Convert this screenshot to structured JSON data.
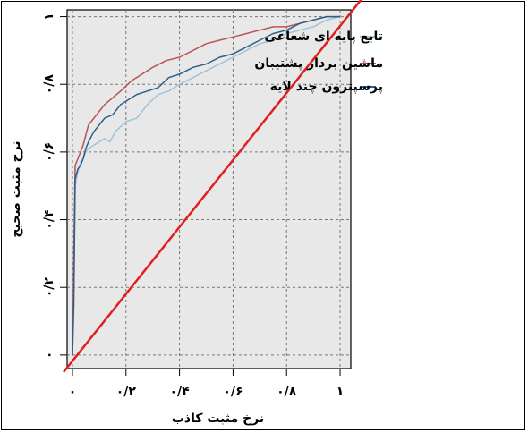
{
  "chart_data": {
    "type": "line",
    "xlabel": "نرخ مثبت کاذب",
    "ylabel": "نرخ مثبت صحیح",
    "xlim": [
      -0.02,
      1.04
    ],
    "ylim": [
      -0.04,
      1.02
    ],
    "x_ticks": [
      0,
      0.2,
      0.4,
      0.6,
      0.8,
      1
    ],
    "x_tick_labels": [
      "۰",
      "۰/۲",
      "۰/۴",
      "۰/۶",
      "۰/۸",
      "۱"
    ],
    "y_ticks": [
      0,
      0.2,
      0.4,
      0.6,
      0.8,
      1
    ],
    "y_tick_labels": [
      "۰",
      "۰/۲",
      "۰/۴",
      "۰/۶",
      "۰/۸",
      "۱"
    ],
    "grid": true,
    "legend_position": "top-right",
    "series": [
      {
        "name": "تابع پایه ای شعاعی",
        "color": "#9dc3de",
        "x": [
          0,
          0.005,
          0.01,
          0.02,
          0.03,
          0.04,
          0.05,
          0.06,
          0.08,
          0.1,
          0.12,
          0.14,
          0.16,
          0.2,
          0.24,
          0.28,
          0.32,
          0.36,
          0.4,
          0.45,
          0.5,
          0.55,
          0.6,
          0.65,
          0.7,
          0.75,
          0.8,
          0.85,
          0.9,
          0.95,
          1
        ],
        "y": [
          0,
          0.22,
          0.5,
          0.54,
          0.57,
          0.58,
          0.6,
          0.61,
          0.62,
          0.63,
          0.64,
          0.63,
          0.66,
          0.69,
          0.7,
          0.74,
          0.77,
          0.78,
          0.8,
          0.82,
          0.84,
          0.86,
          0.88,
          0.9,
          0.92,
          0.93,
          0.95,
          0.96,
          0.97,
          0.99,
          1
        ]
      },
      {
        "name": "ماشین بردار پشتیبان",
        "color": "#b85555",
        "x": [
          0,
          0.005,
          0.01,
          0.02,
          0.03,
          0.04,
          0.05,
          0.06,
          0.08,
          0.1,
          0.12,
          0.15,
          0.18,
          0.22,
          0.26,
          0.3,
          0.35,
          0.4,
          0.45,
          0.5,
          0.55,
          0.6,
          0.65,
          0.7,
          0.75,
          0.8,
          0.85,
          0.9,
          0.95,
          1
        ],
        "y": [
          0,
          0.3,
          0.56,
          0.58,
          0.6,
          0.62,
          0.65,
          0.68,
          0.7,
          0.72,
          0.74,
          0.76,
          0.78,
          0.81,
          0.83,
          0.85,
          0.87,
          0.88,
          0.9,
          0.92,
          0.93,
          0.94,
          0.95,
          0.96,
          0.97,
          0.97,
          0.98,
          0.99,
          1,
          1
        ]
      },
      {
        "name": "پرسپترون چند لایه",
        "color": "#2e5f8a",
        "x": [
          0,
          0.005,
          0.01,
          0.02,
          0.03,
          0.04,
          0.05,
          0.06,
          0.08,
          0.1,
          0.12,
          0.15,
          0.18,
          0.2,
          0.24,
          0.28,
          0.32,
          0.36,
          0.4,
          0.45,
          0.5,
          0.55,
          0.6,
          0.65,
          0.7,
          0.75,
          0.8,
          0.85,
          0.9,
          0.95,
          1
        ],
        "y": [
          0,
          0.15,
          0.52,
          0.55,
          0.56,
          0.58,
          0.61,
          0.63,
          0.66,
          0.68,
          0.7,
          0.71,
          0.74,
          0.75,
          0.77,
          0.78,
          0.79,
          0.82,
          0.83,
          0.85,
          0.86,
          0.88,
          0.89,
          0.91,
          0.93,
          0.95,
          0.96,
          0.98,
          0.99,
          1,
          1
        ]
      }
    ],
    "reference_line": {
      "color": "#e02020",
      "x": [
        -0.02,
        1.04
      ],
      "y": [
        -0.04,
        1.02
      ]
    }
  }
}
